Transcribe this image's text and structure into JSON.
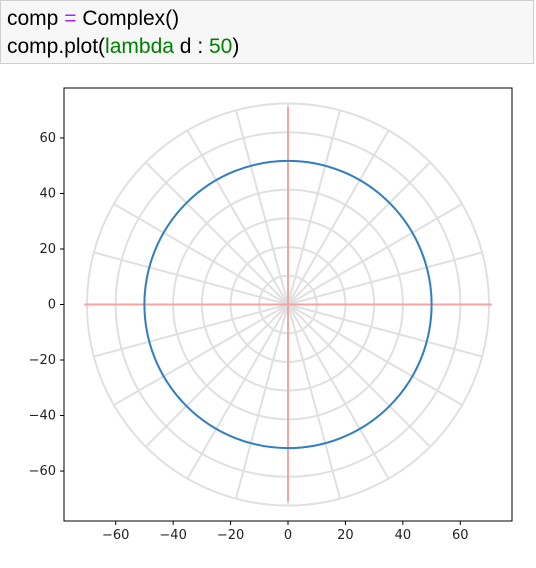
{
  "code_cell": {
    "line1": {
      "var": "comp",
      "op": "=",
      "call": "Complex()"
    },
    "line2": {
      "prefix": "comp.plot(",
      "keyword": "lambda",
      "arg": "d",
      "colon": ":",
      "number": "50",
      "suffix": ")"
    }
  },
  "chart_data": {
    "type": "line",
    "title": "",
    "xlabel": "",
    "ylabel": "",
    "xlim": [
      -78,
      78
    ],
    "ylim": [
      -78,
      78
    ],
    "xticks": [
      -60,
      -40,
      -20,
      0,
      20,
      40,
      60
    ],
    "yticks": [
      60,
      40,
      20,
      0,
      -20,
      -40,
      -60
    ],
    "tick_labels_x": [
      "−60",
      "−40",
      "−20",
      "0",
      "20",
      "40",
      "60"
    ],
    "tick_labels_y": [
      "60",
      "40",
      "20",
      "0",
      "−20",
      "−40",
      "−60"
    ],
    "polar_grid": {
      "radii": [
        10,
        20,
        30,
        40,
        50,
        60,
        70
      ],
      "spoke_count": 24,
      "spoke_inner_radius": 0,
      "spoke_outer_radius": 70,
      "color": "#e0e0e0"
    },
    "axis_lines": {
      "extent": 71,
      "color": "#f5a3a3"
    },
    "series": [
      {
        "shape": "circle",
        "radius": 50,
        "color": "#2f7fc1"
      }
    ]
  }
}
